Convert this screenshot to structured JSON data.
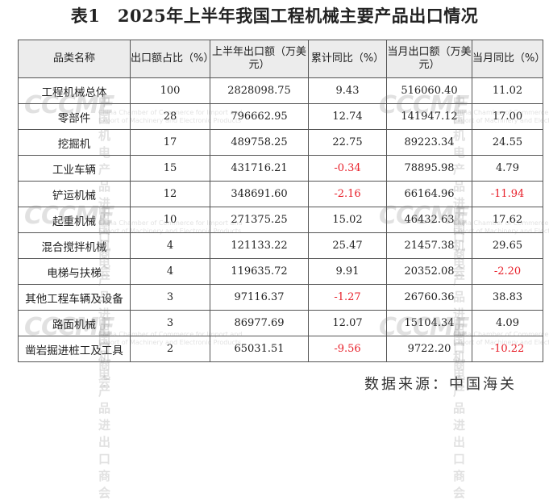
{
  "title": "表1　2025年上半年我国工程机械主要产品出口情况",
  "table": {
    "headers": [
      "品类名称",
      "出口额占比（%）",
      "上半年出口额（万美元）",
      "累计同比（%）",
      "当月出口额（万美元）",
      "当月同比（%）"
    ],
    "rows": [
      {
        "name": "工程机械总体",
        "share": "100",
        "h1": "2828098.75",
        "cum": "9.43",
        "month": "516060.40",
        "mom": "11.02"
      },
      {
        "name": "零部件",
        "share": "28",
        "h1": "796662.95",
        "cum": "12.74",
        "month": "141947.12",
        "mom": "17.00"
      },
      {
        "name": "挖掘机",
        "share": "17",
        "h1": "489758.25",
        "cum": "22.75",
        "month": "89223.34",
        "mom": "24.55"
      },
      {
        "name": "工业车辆",
        "share": "15",
        "h1": "431716.21",
        "cum": "-0.34",
        "month": "78895.98",
        "mom": "4.79"
      },
      {
        "name": "铲运机械",
        "share": "12",
        "h1": "348691.60",
        "cum": "-2.16",
        "month": "66164.96",
        "mom": "-11.94"
      },
      {
        "name": "起重机械",
        "share": "10",
        "h1": "271375.25",
        "cum": "15.02",
        "month": "46432.63",
        "mom": "17.62"
      },
      {
        "name": "混合搅拌机械",
        "share": "4",
        "h1": "121133.22",
        "cum": "25.47",
        "month": "21457.38",
        "mom": "29.65"
      },
      {
        "name": "电梯与扶梯",
        "share": "4",
        "h1": "119635.72",
        "cum": "9.91",
        "month": "20352.08",
        "mom": "-2.20"
      },
      {
        "name": "其他工程车辆及设备",
        "share": "3",
        "h1": "97116.37",
        "cum": "-1.27",
        "month": "26760.36",
        "mom": "38.83"
      },
      {
        "name": "路面机械",
        "share": "3",
        "h1": "86977.69",
        "cum": "12.07",
        "month": "15104.34",
        "mom": "4.09"
      },
      {
        "name": "凿岩掘进桩工及工具",
        "share": "2",
        "h1": "65031.51",
        "cum": "-9.56",
        "month": "9722.20",
        "mom": "-10.22"
      }
    ]
  },
  "watermark": {
    "logo": "CCCME",
    "cn": "中国机电产品进出口商会",
    "en1": "China Chamber of Commerce for Import and",
    "en2": "Export of Machinery and Electronic Products"
  },
  "source": "数据来源：中国海关",
  "colors": {
    "negative": "#e8202a",
    "header_bg": "#ececec"
  }
}
